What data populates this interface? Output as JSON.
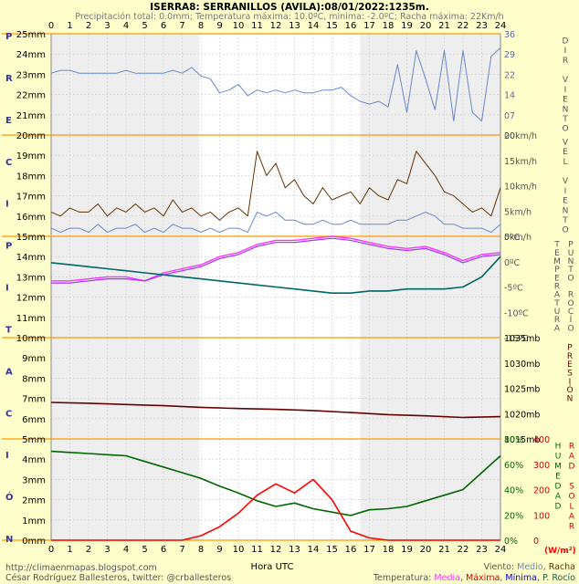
{
  "title": "ISERRA8: SERRANILLOS (AVILA):08/01/2022:1235m.",
  "subtitle": "Precipitación total: 0.0mm; Temperatura máxima: 10.0ºC, mínima: -2.0ºC; Racha máxima: 22Km/h",
  "left_axis_letters": [
    "P",
    "R",
    "E",
    "C",
    "I",
    "P",
    "I",
    "T",
    "A",
    "C",
    "I",
    "Ó",
    "N"
  ],
  "left_axis_ticks": [
    "25mm",
    "24mm",
    "23mm",
    "22mm",
    "21mm",
    "20mm",
    "19mm",
    "18mm",
    "17mm",
    "16mm",
    "15mm",
    "14mm",
    "13mm",
    "12mm",
    "11mm",
    "10mm",
    "9mm",
    "8mm",
    "7mm",
    "6mm",
    "5mm",
    "4mm",
    "3mm",
    "2mm",
    "1mm",
    "0mm"
  ],
  "hour_ticks": [
    "0",
    "1",
    "2",
    "3",
    "4",
    "5",
    "6",
    "7",
    "8",
    "9",
    "10",
    "11",
    "12",
    "13",
    "14",
    "15",
    "16",
    "17",
    "18",
    "19",
    "20",
    "21",
    "22",
    "23",
    "24"
  ],
  "xlabel": "Hora UTC",
  "colors": {
    "background": "#ffffcc",
    "plot_bg": "#ffffff",
    "night_bg": "#eeeeee",
    "separator": "#ff9900",
    "grid": "#cccccc",
    "wind_dir": "#6688cc",
    "wind_gust": "#663300",
    "wind_avg": "#6688cc",
    "temp_max": "#ff33ff",
    "temp_avg": "#9933ff",
    "dewpoint": "#006666",
    "pressure": "#660000",
    "humidity": "#006600",
    "radiation": "#ff0000"
  },
  "right_labels": {
    "wind_dir": "DIR VIENTO",
    "wind_speed": "VEL VIENTO",
    "temperature": "TEMPERATURA",
    "dewpoint": "PUNTO ROCÍO",
    "pressure": "PRESIÓN",
    "humidity": "HUMEDAD",
    "radiation": "RAD SOLAR"
  },
  "footer": {
    "left1": "http://climaenmapas.blogspot.com",
    "left2": "César Rodríguez Ballesteros, twitter: @crballesteros",
    "wind_legend_prefix": "Viento: ",
    "wind_legend_avg": "Medio",
    "wind_legend_sep": ", ",
    "wind_legend_gust": "Racha",
    "temp_legend_prefix": "Temperatura: ",
    "temp_avg": "Media",
    "temp_max": "Máxima",
    "temp_min": "Mínima",
    "dewpoint": "P. Rocío",
    "rad_unit": "(W/m²)"
  },
  "chart_data": [
    {
      "type": "line",
      "name": "wind_direction",
      "ylabel": "DIR VIENTO",
      "ylim": [
        0,
        36
      ],
      "right_ticks": [
        "36",
        "29",
        "22",
        "14",
        "07",
        "00"
      ],
      "x": [
        0,
        0.5,
        1,
        1.5,
        2,
        2.5,
        3,
        3.5,
        4,
        4.5,
        5,
        5.5,
        6,
        6.5,
        7,
        7.5,
        8,
        8.5,
        9,
        9.5,
        10,
        10.5,
        11,
        11.5,
        12,
        12.5,
        13,
        13.5,
        14,
        14.5,
        15,
        15.5,
        16,
        16.5,
        17,
        17.5,
        18,
        18.5,
        19,
        19.5,
        20,
        20.5,
        21,
        21.5,
        22,
        22.5,
        23,
        23.5,
        24
      ],
      "y": [
        22,
        23,
        23,
        22,
        22,
        22,
        22,
        22,
        23,
        22,
        22,
        22,
        22,
        23,
        22,
        24,
        21,
        20,
        15,
        16,
        18,
        14,
        16,
        15,
        16,
        15,
        16,
        15,
        15,
        16,
        16,
        17,
        14,
        12,
        11,
        12,
        10,
        25,
        8,
        30,
        20,
        9,
        30,
        5,
        30,
        8,
        5,
        28,
        31
      ]
    },
    {
      "type": "line",
      "name": "wind_speed",
      "ylabel": "VEL VIENTO",
      "ylim": [
        0,
        25
      ],
      "right_ticks": [
        "20km/h",
        "15km/h",
        "10km/h",
        "5km/h",
        "0km/h"
      ],
      "x": [
        0,
        0.5,
        1,
        1.5,
        2,
        2.5,
        3,
        3.5,
        4,
        4.5,
        5,
        5.5,
        6,
        6.5,
        7,
        7.5,
        8,
        8.5,
        9,
        9.5,
        10,
        10.5,
        11,
        11.5,
        12,
        12.5,
        13,
        13.5,
        14,
        14.5,
        15,
        15.5,
        16,
        16.5,
        17,
        17.5,
        18,
        18.5,
        19,
        19.5,
        20,
        20.5,
        21,
        21.5,
        22,
        22.5,
        23,
        23.5,
        24
      ],
      "series": [
        {
          "name": "Racha",
          "values": [
            6,
            5,
            7,
            6,
            6,
            8,
            5,
            7,
            6,
            8,
            6,
            7,
            5,
            9,
            6,
            7,
            5,
            6,
            4,
            6,
            7,
            5,
            21,
            15,
            18,
            12,
            14,
            10,
            8,
            12,
            9,
            10,
            11,
            8,
            12,
            10,
            9,
            14,
            13,
            21,
            18,
            15,
            11,
            10,
            8,
            6,
            7,
            5,
            12
          ]
        },
        {
          "name": "Medio",
          "values": [
            2,
            1,
            2,
            2,
            1,
            3,
            1,
            2,
            2,
            3,
            1,
            2,
            1,
            3,
            2,
            2,
            1,
            2,
            1,
            2,
            2,
            1,
            6,
            5,
            6,
            4,
            4,
            3,
            3,
            4,
            3,
            3,
            4,
            3,
            3,
            3,
            3,
            4,
            4,
            5,
            6,
            5,
            3,
            3,
            2,
            2,
            2,
            1,
            3
          ]
        }
      ]
    },
    {
      "type": "line",
      "name": "temperature",
      "ylabel": "TEMPERATURA",
      "ylim": [
        -15,
        10
      ],
      "right_ticks": [
        "5ºC",
        "0ºC",
        "-5ºC",
        "-10ºC",
        "-15ºC"
      ],
      "x": [
        0,
        1,
        2,
        3,
        4,
        5,
        6,
        7,
        8,
        9,
        10,
        11,
        12,
        13,
        14,
        15,
        16,
        17,
        18,
        19,
        20,
        21,
        22,
        23,
        24
      ],
      "series": [
        {
          "name": "Máxima",
          "values": [
            -1,
            -1,
            -0.5,
            0,
            0,
            -1,
            1,
            2,
            3,
            5,
            6,
            8,
            9,
            9,
            9.5,
            10,
            9.5,
            8.5,
            7.5,
            7,
            7.5,
            6,
            4,
            5.5,
            6
          ]
        },
        {
          "name": "Media",
          "values": [
            -1.5,
            -1.5,
            -1,
            -0.5,
            -0.5,
            -1,
            0.5,
            1.5,
            2.5,
            4.5,
            5.5,
            7.5,
            8.5,
            8.5,
            9,
            9.5,
            9,
            8,
            7,
            6.5,
            7,
            5.5,
            3.5,
            5,
            5.5
          ]
        },
        {
          "name": "P. Rocío",
          "values": [
            3.5,
            3,
            2.5,
            2,
            1.5,
            1,
            0.5,
            0,
            -0.5,
            -1,
            -1.5,
            -2,
            -2.5,
            -3,
            -3.5,
            -4,
            -4,
            -3.5,
            -3.5,
            -3,
            -3,
            -3,
            -2.5,
            0,
            5
          ]
        }
      ]
    },
    {
      "type": "line",
      "name": "pressure",
      "ylabel": "PRESIÓN",
      "ylim": [
        1015,
        1040
      ],
      "right_ticks": [
        "1035mb",
        "1030mb",
        "1025mb",
        "1020mb",
        "1015mb"
      ],
      "x": [
        0,
        2,
        4,
        6,
        8,
        10,
        12,
        14,
        16,
        18,
        20,
        22,
        24
      ],
      "series": [
        {
          "name": "Presión",
          "values": [
            1024,
            1023.8,
            1023.5,
            1023.2,
            1022.8,
            1022.5,
            1022.3,
            1022,
            1021.5,
            1021,
            1020.7,
            1020.3,
            1020.5
          ]
        }
      ]
    },
    {
      "type": "line",
      "name": "humidity_radiation",
      "ylabel": "HUMEDAD / RAD SOLAR",
      "xlabel": "Hora UTC",
      "right_ticks_humidity": [
        "80%",
        "60%",
        "40%",
        "20%",
        "0%"
      ],
      "right_ticks_radiation": [
        "400",
        "300",
        "200",
        "100",
        "0"
      ],
      "humidity_ylim": [
        0,
        90
      ],
      "radiation_ylim": [
        0,
        450
      ],
      "x": [
        0,
        1,
        2,
        3,
        4,
        5,
        6,
        7,
        8,
        9,
        10,
        11,
        12,
        13,
        14,
        15,
        16,
        17,
        18,
        19,
        20,
        21,
        22,
        23,
        24
      ],
      "series": [
        {
          "name": "Humedad",
          "values": [
            79,
            78,
            77,
            76,
            75,
            70,
            65,
            60,
            55,
            48,
            42,
            35,
            30,
            33,
            28,
            25,
            22,
            27,
            28,
            30,
            35,
            40,
            45,
            60,
            75
          ]
        },
        {
          "name": "Rad solar",
          "values": [
            0,
            0,
            0,
            0,
            0,
            0,
            0,
            0,
            20,
            60,
            120,
            200,
            250,
            210,
            270,
            180,
            40,
            10,
            0,
            0,
            0,
            0,
            0,
            0,
            0
          ]
        }
      ]
    }
  ]
}
